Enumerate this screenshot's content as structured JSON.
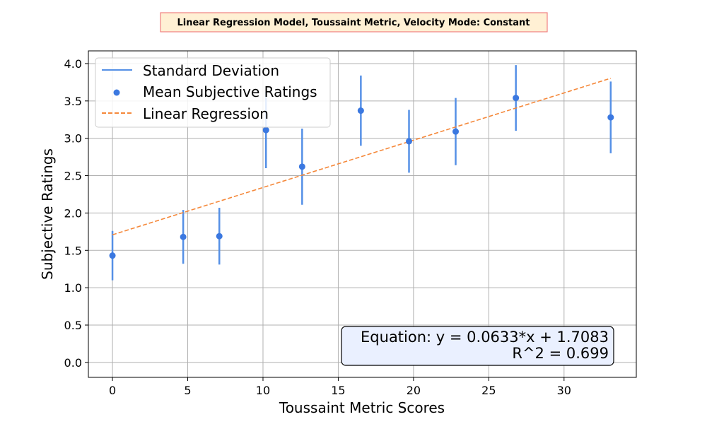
{
  "chart_data": {
    "type": "scatter",
    "title": "Linear Regression Model, Toussaint Metric, Velocity Mode: Constant",
    "xlabel": "Toussaint Metric Scores",
    "ylabel": "Subjective Ratings",
    "xlim": [
      -1.6,
      34.8
    ],
    "ylim": [
      -0.2,
      4.17
    ],
    "xticks": [
      0,
      5,
      10,
      15,
      20,
      25,
      30
    ],
    "xtick_labels": [
      "0",
      "5",
      "10",
      "15",
      "20",
      "25",
      "30"
    ],
    "yticks": [
      0.0,
      0.5,
      1.0,
      1.5,
      2.0,
      2.5,
      3.0,
      3.5,
      4.0
    ],
    "ytick_labels": [
      "0.0",
      "0.5",
      "1.0",
      "1.5",
      "2.0",
      "2.5",
      "3.0",
      "3.5",
      "4.0"
    ],
    "grid": true,
    "legend_position": "top-left",
    "legend": [
      "Standard Deviation",
      "Mean Subjective Ratings",
      "Linear Regression"
    ],
    "series": [
      {
        "name": "Mean Subjective Ratings",
        "x": [
          0.0,
          4.7,
          7.1,
          10.2,
          12.6,
          16.5,
          19.7,
          22.8,
          26.8,
          33.1
        ],
        "y": [
          1.43,
          1.68,
          1.69,
          3.11,
          2.62,
          3.37,
          2.96,
          3.09,
          3.54,
          3.28
        ],
        "std": [
          0.33,
          0.36,
          0.38,
          0.51,
          0.51,
          0.47,
          0.42,
          0.45,
          0.44,
          0.48
        ]
      }
    ],
    "regression": {
      "name": "Linear Regression",
      "slope": 0.0633,
      "intercept": 1.7083,
      "x_range": [
        0.0,
        33.1
      ]
    },
    "annotation": {
      "equation": "Equation: y = 0.0633*x + 1.7083",
      "r_squared": "R^2 = 0.699"
    },
    "colors": {
      "points": "#3b78e0",
      "errorbars": "#5590e6",
      "regression": "#f5883a",
      "grid": "#b0b0b0",
      "title_bg": "#fff0d4",
      "title_border": "#f08080",
      "annotation_bg": "#eaf0ff"
    }
  }
}
